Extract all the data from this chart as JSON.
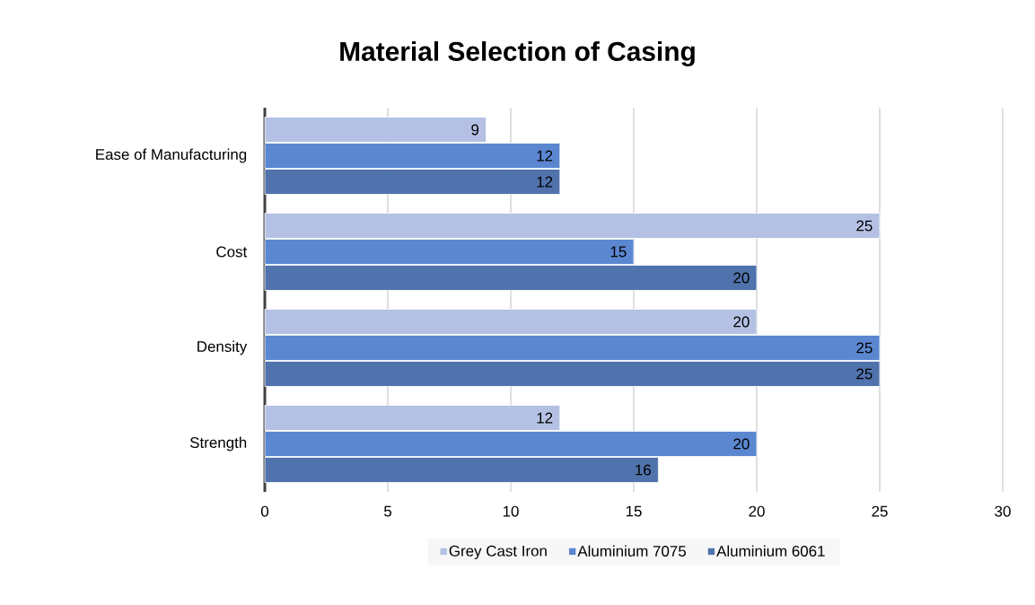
{
  "chart_data": {
    "type": "bar",
    "orientation": "horizontal",
    "title": "Material Selection of Casing",
    "categories": [
      "Ease of Manufacturing",
      "Cost",
      "Density",
      "Strength"
    ],
    "series": [
      {
        "name": "Grey Cast Iron",
        "color": "#b4c1e4",
        "values": [
          9,
          25,
          20,
          12
        ]
      },
      {
        "name": "Aluminium 7075",
        "color": "#5b87d1",
        "values": [
          12,
          15,
          25,
          20
        ]
      },
      {
        "name": "Aluminium 6061",
        "color": "#5073ad",
        "values": [
          12,
          20,
          25,
          16
        ]
      }
    ],
    "xlim": [
      0,
      30
    ],
    "xticks": [
      0,
      5,
      10,
      15,
      20,
      25,
      30
    ],
    "grid": "x",
    "legend": "bottom",
    "data_labels": true
  }
}
